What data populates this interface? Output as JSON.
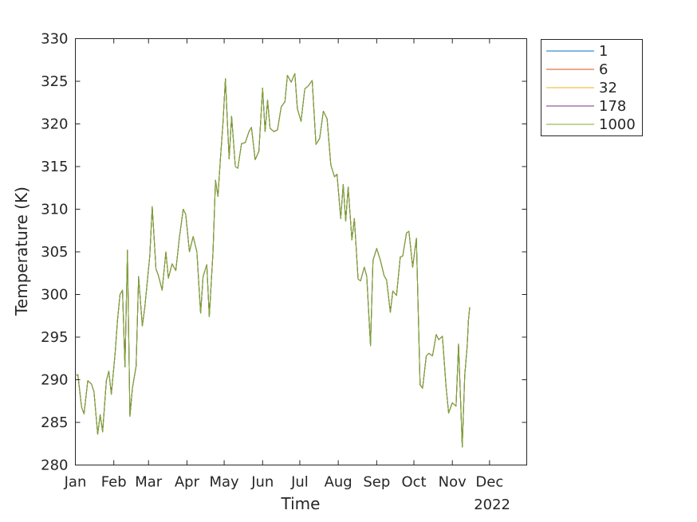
{
  "chart_data": {
    "type": "line",
    "xlabel": "Time",
    "ylabel": "Temperature (K)",
    "year_label": "2022",
    "ylim": [
      280,
      330
    ],
    "yticks": [
      280,
      285,
      290,
      295,
      300,
      305,
      310,
      315,
      320,
      325,
      330
    ],
    "xlim": [
      "2022-01-01",
      "2022-12-31"
    ],
    "xticks": [
      {
        "date": "2022-01-01",
        "label": "Jan"
      },
      {
        "date": "2022-02-01",
        "label": "Feb"
      },
      {
        "date": "2022-03-01",
        "label": "Mar"
      },
      {
        "date": "2022-04-01",
        "label": "Apr"
      },
      {
        "date": "2022-05-01",
        "label": "May"
      },
      {
        "date": "2022-06-01",
        "label": "Jun"
      },
      {
        "date": "2022-07-01",
        "label": "Jul"
      },
      {
        "date": "2022-08-01",
        "label": "Aug"
      },
      {
        "date": "2022-09-01",
        "label": "Sep"
      },
      {
        "date": "2022-10-01",
        "label": "Oct"
      },
      {
        "date": "2022-11-01",
        "label": "Nov"
      },
      {
        "date": "2022-12-01",
        "label": "Dec"
      }
    ],
    "grid": false,
    "legend_position": "outside top-right",
    "series": [
      {
        "name": "1",
        "color": "#0072BD"
      },
      {
        "name": "6",
        "color": "#D95319"
      },
      {
        "name": "32",
        "color": "#EDB120"
      },
      {
        "name": "178",
        "color": "#7E2F8E"
      },
      {
        "name": "1000",
        "color": "#77AC30"
      }
    ],
    "line_data": {
      "note_series": "All five series overlap; only the last-drawn (1000) is visible.",
      "points": [
        [
          "2022-01-01",
          290.5
        ],
        [
          "2022-01-03",
          290.6
        ],
        [
          "2022-01-06",
          286.8
        ],
        [
          "2022-01-08",
          286.0
        ],
        [
          "2022-01-11",
          289.9
        ],
        [
          "2022-01-14",
          289.5
        ],
        [
          "2022-01-16",
          288.6
        ],
        [
          "2022-01-19",
          283.6
        ],
        [
          "2022-01-21",
          285.9
        ],
        [
          "2022-01-23",
          283.9
        ],
        [
          "2022-01-26",
          289.9
        ],
        [
          "2022-01-28",
          291.0
        ],
        [
          "2022-01-30",
          288.3
        ],
        [
          "2022-02-02",
          293.0
        ],
        [
          "2022-02-04",
          297.0
        ],
        [
          "2022-02-06",
          300.0
        ],
        [
          "2022-02-08",
          300.5
        ],
        [
          "2022-02-10",
          291.5
        ],
        [
          "2022-02-12",
          305.2
        ],
        [
          "2022-02-14",
          285.7
        ],
        [
          "2022-02-16",
          289.0
        ],
        [
          "2022-02-19",
          291.6
        ],
        [
          "2022-02-21",
          302.1
        ],
        [
          "2022-02-24",
          296.3
        ],
        [
          "2022-02-26",
          298.5
        ],
        [
          "2022-03-02",
          304.5
        ],
        [
          "2022-03-04",
          310.3
        ],
        [
          "2022-03-07",
          303.0
        ],
        [
          "2022-03-09",
          302.2
        ],
        [
          "2022-03-12",
          300.5
        ],
        [
          "2022-03-15",
          305.0
        ],
        [
          "2022-03-17",
          301.9
        ],
        [
          "2022-03-20",
          303.6
        ],
        [
          "2022-03-23",
          302.8
        ],
        [
          "2022-03-26",
          306.8
        ],
        [
          "2022-03-29",
          310.0
        ],
        [
          "2022-03-31",
          309.4
        ],
        [
          "2022-04-03",
          305.0
        ],
        [
          "2022-04-06",
          306.8
        ],
        [
          "2022-04-09",
          305.0
        ],
        [
          "2022-04-12",
          297.8
        ],
        [
          "2022-04-14",
          302.1
        ],
        [
          "2022-04-17",
          303.5
        ],
        [
          "2022-04-19",
          297.4
        ],
        [
          "2022-04-22",
          305.0
        ],
        [
          "2022-04-24",
          313.4
        ],
        [
          "2022-04-26",
          311.5
        ],
        [
          "2022-04-28",
          316.0
        ],
        [
          "2022-04-30",
          320.0
        ],
        [
          "2022-05-02",
          325.3
        ],
        [
          "2022-05-05",
          315.9
        ],
        [
          "2022-05-07",
          320.9
        ],
        [
          "2022-05-10",
          315.0
        ],
        [
          "2022-05-12",
          314.8
        ],
        [
          "2022-05-15",
          317.7
        ],
        [
          "2022-05-18",
          317.8
        ],
        [
          "2022-05-21",
          319.1
        ],
        [
          "2022-05-23",
          319.6
        ],
        [
          "2022-05-26",
          315.8
        ],
        [
          "2022-05-29",
          316.8
        ],
        [
          "2022-06-01",
          324.2
        ],
        [
          "2022-06-03",
          319.1
        ],
        [
          "2022-06-05",
          322.8
        ],
        [
          "2022-06-07",
          319.5
        ],
        [
          "2022-06-10",
          319.1
        ],
        [
          "2022-06-13",
          319.3
        ],
        [
          "2022-06-16",
          322.0
        ],
        [
          "2022-06-19",
          322.6
        ],
        [
          "2022-06-21",
          325.7
        ],
        [
          "2022-06-24",
          324.9
        ],
        [
          "2022-06-27",
          325.9
        ],
        [
          "2022-06-29",
          321.8
        ],
        [
          "2022-07-02",
          320.3
        ],
        [
          "2022-07-05",
          324.1
        ],
        [
          "2022-07-08",
          324.5
        ],
        [
          "2022-07-11",
          325.1
        ],
        [
          "2022-07-14",
          317.6
        ],
        [
          "2022-07-17",
          318.3
        ],
        [
          "2022-07-20",
          321.5
        ],
        [
          "2022-07-23",
          320.6
        ],
        [
          "2022-07-26",
          315.2
        ],
        [
          "2022-07-29",
          313.8
        ],
        [
          "2022-07-31",
          314.1
        ],
        [
          "2022-08-03",
          308.9
        ],
        [
          "2022-08-05",
          312.9
        ],
        [
          "2022-08-07",
          308.6
        ],
        [
          "2022-08-09",
          312.6
        ],
        [
          "2022-08-12",
          306.4
        ],
        [
          "2022-08-14",
          308.9
        ],
        [
          "2022-08-17",
          301.8
        ],
        [
          "2022-08-19",
          301.6
        ],
        [
          "2022-08-22",
          303.2
        ],
        [
          "2022-08-24",
          302.1
        ],
        [
          "2022-08-27",
          294.0
        ],
        [
          "2022-08-29",
          304.0
        ],
        [
          "2022-09-01",
          305.4
        ],
        [
          "2022-09-04",
          304.0
        ],
        [
          "2022-09-07",
          302.2
        ],
        [
          "2022-09-09",
          301.7
        ],
        [
          "2022-09-12",
          297.9
        ],
        [
          "2022-09-14",
          300.4
        ],
        [
          "2022-09-17",
          299.9
        ],
        [
          "2022-09-20",
          304.4
        ],
        [
          "2022-09-22",
          304.5
        ],
        [
          "2022-09-25",
          307.2
        ],
        [
          "2022-09-27",
          307.4
        ],
        [
          "2022-09-30",
          303.2
        ],
        [
          "2022-10-03",
          306.6
        ],
        [
          "2022-10-06",
          289.4
        ],
        [
          "2022-10-08",
          289.0
        ],
        [
          "2022-10-11",
          292.8
        ],
        [
          "2022-10-13",
          293.1
        ],
        [
          "2022-10-16",
          292.8
        ],
        [
          "2022-10-19",
          295.3
        ],
        [
          "2022-10-21",
          294.7
        ],
        [
          "2022-10-24",
          295.1
        ],
        [
          "2022-10-27",
          289.1
        ],
        [
          "2022-10-29",
          286.1
        ],
        [
          "2022-11-01",
          287.3
        ],
        [
          "2022-11-04",
          286.9
        ],
        [
          "2022-11-06",
          294.2
        ],
        [
          "2022-11-09",
          282.1
        ],
        [
          "2022-11-11",
          290.5
        ],
        [
          "2022-11-13",
          294.0
        ],
        [
          "2022-11-14",
          297.0
        ],
        [
          "2022-11-15",
          298.5
        ]
      ]
    }
  }
}
